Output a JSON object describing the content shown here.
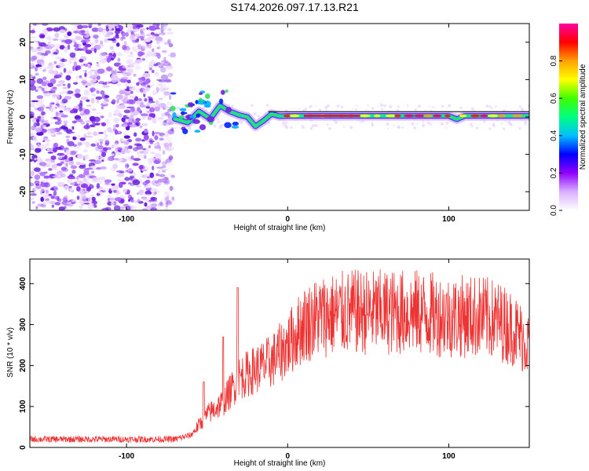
{
  "title": "S174.2026.097.17.13.R21",
  "chart_data": [
    {
      "type": "heatmap",
      "title": "S174.2026.097.17.13.R21",
      "xlabel": "Height of straight line (km)",
      "ylabel": "Frequency (Hz)",
      "xlim": [
        -160,
        150
      ],
      "ylim": [
        -25,
        25
      ],
      "x_ticks": [
        -100,
        0,
        100
      ],
      "y_ticks": [
        20,
        10,
        0,
        -10,
        -20
      ],
      "colorbar": {
        "label": "Normalized spectral amplitude",
        "range": [
          0,
          1
        ],
        "ticks": [
          0.0,
          0.2,
          0.4,
          0.6,
          0.8
        ],
        "colors": [
          "#ffffff",
          "#d8b0ff",
          "#9000ff",
          "#0000ff",
          "#00c0ff",
          "#00ff80",
          "#40ff00",
          "#ffff00",
          "#ffa000",
          "#ff0000",
          "#ff00a0"
        ]
      },
      "noise_region_x": [
        -160,
        -75
      ],
      "signal_trace": [
        {
          "x": -70,
          "y": -0.5
        },
        {
          "x": -62,
          "y": -1.5
        },
        {
          "x": -55,
          "y": 1.5
        },
        {
          "x": -48,
          "y": -0.5
        },
        {
          "x": -42,
          "y": 3.0
        },
        {
          "x": -36,
          "y": 1.5
        },
        {
          "x": -30,
          "y": 0.5
        },
        {
          "x": -25,
          "y": 0.0
        },
        {
          "x": -20,
          "y": -2.5
        },
        {
          "x": -15,
          "y": -1.0
        },
        {
          "x": -10,
          "y": 0.8
        },
        {
          "x": -5,
          "y": 0.2
        },
        {
          "x": 0,
          "y": 0.3
        },
        {
          "x": 50,
          "y": 0.3
        },
        {
          "x": 100,
          "y": 0.3
        },
        {
          "x": 105,
          "y": -0.6
        },
        {
          "x": 110,
          "y": 0.3
        },
        {
          "x": 150,
          "y": 0.3
        }
      ]
    },
    {
      "type": "line",
      "xlabel": "Height of straight line (km)",
      "ylabel": "SNR (10 * v/v)",
      "xlim": [
        -160,
        150
      ],
      "ylim": [
        0,
        460
      ],
      "x_ticks": [
        -100,
        0,
        100
      ],
      "y_ticks": [
        0,
        100,
        200,
        300,
        400
      ],
      "series": [
        {
          "name": "SNR",
          "color": "#ee3333",
          "envelope": [
            {
              "x": -160,
              "y": 20
            },
            {
              "x": -70,
              "y": 20
            },
            {
              "x": -60,
              "y": 30
            },
            {
              "x": -50,
              "y": 80
            },
            {
              "x": -40,
              "y": 110
            },
            {
              "x": -30,
              "y": 170
            },
            {
              "x": -20,
              "y": 190
            },
            {
              "x": -10,
              "y": 210
            },
            {
              "x": 0,
              "y": 250
            },
            {
              "x": 10,
              "y": 300
            },
            {
              "x": 20,
              "y": 320
            },
            {
              "x": 40,
              "y": 330
            },
            {
              "x": 60,
              "y": 330
            },
            {
              "x": 80,
              "y": 330
            },
            {
              "x": 100,
              "y": 320
            },
            {
              "x": 120,
              "y": 320
            },
            {
              "x": 130,
              "y": 310
            },
            {
              "x": 140,
              "y": 290
            },
            {
              "x": 150,
              "y": 250
            }
          ],
          "spikes": [
            {
              "x": -31,
              "y": 390
            },
            {
              "x": -40,
              "y": 270
            },
            {
              "x": -52,
              "y": 160
            }
          ]
        }
      ]
    }
  ]
}
